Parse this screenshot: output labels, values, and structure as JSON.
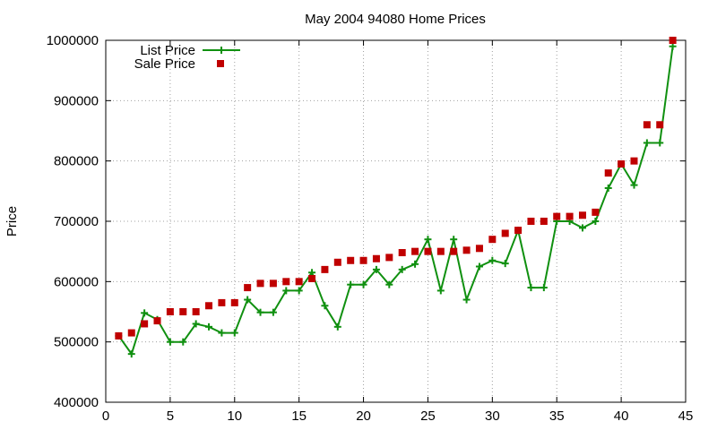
{
  "chart_data": {
    "type": "line",
    "title": "May 2004 94080 Home Prices",
    "xlabel": "",
    "ylabel": "Price",
    "xlim": [
      0,
      45
    ],
    "ylim": [
      400000,
      1000000
    ],
    "xticks": [
      0,
      5,
      10,
      15,
      20,
      25,
      30,
      35,
      40,
      45
    ],
    "yticks": [
      400000,
      500000,
      600000,
      700000,
      800000,
      900000,
      1000000
    ],
    "grid": true,
    "legend_position": "top-left",
    "series": [
      {
        "name": "List Price",
        "style": "line-with-plus-markers",
        "color": "#109010",
        "x": [
          1,
          2,
          3,
          4,
          5,
          6,
          7,
          8,
          9,
          10,
          11,
          12,
          13,
          14,
          15,
          16,
          17,
          18,
          19,
          20,
          21,
          22,
          23,
          24,
          25,
          26,
          27,
          28,
          29,
          30,
          31,
          32,
          33,
          34,
          35,
          36,
          37,
          38,
          39,
          40,
          41,
          42,
          43,
          44
        ],
        "values": [
          510000,
          480000,
          548000,
          537000,
          500000,
          500000,
          530000,
          525000,
          515000,
          515000,
          570000,
          549000,
          549000,
          585000,
          585000,
          615000,
          560000,
          525000,
          595000,
          595000,
          620000,
          595000,
          620000,
          629000,
          670000,
          585000,
          670000,
          570000,
          625000,
          635000,
          630000,
          685000,
          590000,
          590000,
          700000,
          700000,
          689000,
          700000,
          755000,
          795000,
          760000,
          830000,
          830000,
          990000
        ]
      },
      {
        "name": "Sale Price",
        "style": "square-markers",
        "color": "#c00000",
        "x": [
          1,
          2,
          3,
          4,
          5,
          6,
          7,
          8,
          9,
          10,
          11,
          12,
          13,
          14,
          15,
          16,
          17,
          18,
          19,
          20,
          21,
          22,
          23,
          24,
          25,
          26,
          27,
          28,
          29,
          30,
          31,
          32,
          33,
          34,
          35,
          36,
          37,
          38,
          39,
          40,
          41,
          42,
          43,
          44
        ],
        "values": [
          510000,
          515000,
          530000,
          535000,
          550000,
          550000,
          550000,
          560000,
          565000,
          565000,
          590000,
          597000,
          597000,
          600000,
          600000,
          605000,
          620000,
          632000,
          635000,
          635000,
          638000,
          640000,
          648000,
          650000,
          650000,
          650000,
          650000,
          652000,
          655000,
          670000,
          680000,
          685000,
          700000,
          700000,
          708000,
          708000,
          710000,
          715000,
          780000,
          795000,
          800000,
          860000,
          860000,
          1000000
        ]
      }
    ]
  }
}
